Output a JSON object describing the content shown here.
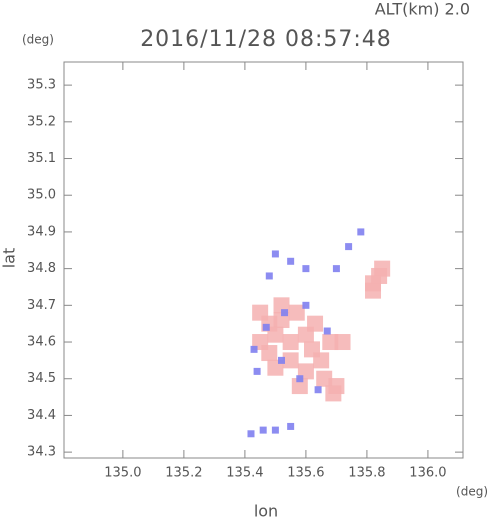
{
  "chart_data": {
    "type": "scatter",
    "title": "2016/11/28 08:57:48",
    "subtitle": "ALT(km) 2.0",
    "y_unit": "(deg)",
    "x_unit": "(deg)",
    "xlabel": "lon",
    "ylabel": "lat",
    "xlim": [
      134.807,
      136.115
    ],
    "ylim": [
      34.284,
      35.363
    ],
    "xticks": [
      {
        "value": 135,
        "label": "135.0"
      },
      135.2,
      135.4,
      135.6,
      135.8,
      {
        "value": 136,
        "label": "136.0"
      }
    ],
    "yticks": [
      34.3,
      34.4,
      34.5,
      34.6,
      34.7,
      34.8,
      34.9,
      {
        "value": 35,
        "label": "35.0"
      },
      35.1,
      35.2,
      35.3
    ],
    "series": [
      {
        "color": "#f4b0b0",
        "x": [
          135.45,
          135.48,
          135.52,
          135.5,
          135.55,
          135.6,
          135.62,
          135.65,
          135.6,
          135.66,
          135.7,
          135.58,
          135.55,
          135.45,
          135.48,
          135.63,
          135.68,
          135.52,
          135.82,
          135.84,
          135.85,
          135.82,
          135.72,
          135.69,
          135.57,
          135.5
        ],
        "y": [
          34.68,
          34.65,
          34.66,
          34.62,
          34.6,
          34.62,
          34.58,
          34.55,
          34.52,
          34.5,
          34.48,
          34.48,
          34.55,
          34.6,
          34.57,
          34.65,
          34.6,
          34.7,
          34.74,
          34.78,
          34.8,
          34.76,
          34.6,
          34.46,
          34.68,
          34.53
        ]
      },
      {
        "color": "#7f7ff0",
        "x": [
          135.5,
          135.55,
          135.6,
          135.7,
          135.74,
          135.48,
          135.43,
          135.47,
          135.52,
          135.58,
          135.64,
          135.53,
          135.6,
          135.67,
          135.44,
          135.42,
          135.46,
          135.5,
          135.55,
          135.78
        ],
        "y": [
          34.84,
          34.82,
          34.8,
          34.8,
          34.86,
          34.78,
          34.58,
          34.64,
          34.55,
          34.5,
          34.47,
          34.68,
          34.7,
          34.63,
          34.52,
          34.35,
          34.36,
          34.36,
          34.37,
          34.9
        ]
      }
    ]
  }
}
